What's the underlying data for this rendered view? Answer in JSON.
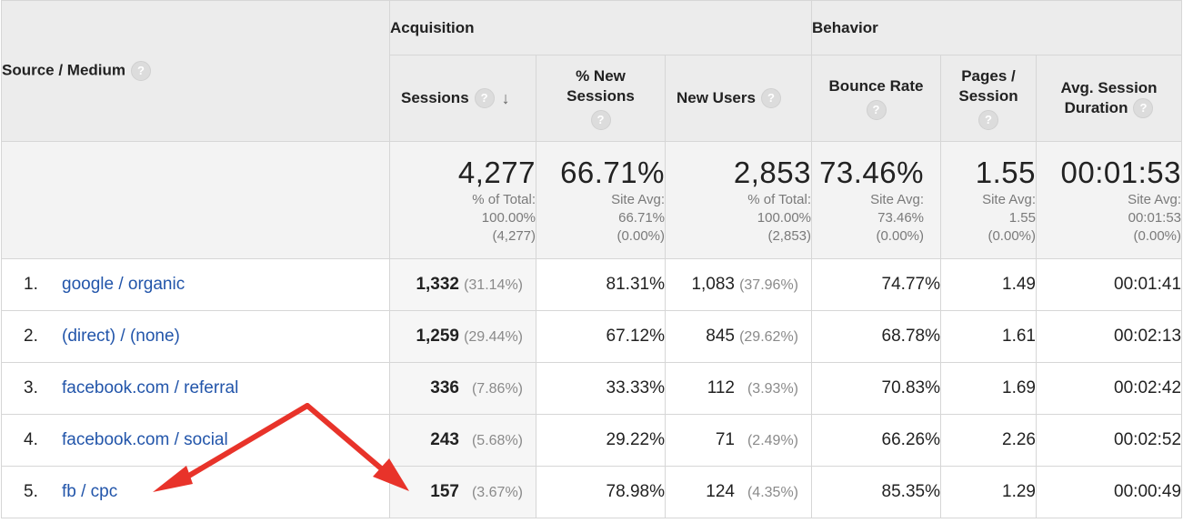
{
  "header": {
    "source_medium": "Source / Medium",
    "acquisition": "Acquisition",
    "behavior": "Behavior",
    "sessions": "Sessions",
    "pct_new_sessions_1": "% New",
    "pct_new_sessions_2": "Sessions",
    "new_users": "New Users",
    "bounce_rate": "Bounce Rate",
    "pages_session_1": "Pages /",
    "pages_session_2": "Session",
    "avg_session_1": "Avg. Session",
    "avg_session_2": "Duration",
    "help_glyph": "?",
    "sort_glyph": "↓"
  },
  "totals": {
    "sessions": {
      "big": "4,277",
      "l1": "% of Total:",
      "l2": "100.00%",
      "l3": "(4,277)"
    },
    "pct_new": {
      "big": "66.71%",
      "l1": "Site Avg:",
      "l2": "66.71%",
      "l3": "(0.00%)"
    },
    "new_users": {
      "big": "2,853",
      "l1": "% of Total:",
      "l2": "100.00%",
      "l3": "(2,853)"
    },
    "bounce": {
      "big": "73.46%",
      "l1": "Site Avg:",
      "l2": "73.46%",
      "l3": "(0.00%)"
    },
    "pages": {
      "big": "1.55",
      "l1": "Site Avg:",
      "l2": "1.55",
      "l3": "(0.00%)"
    },
    "duration": {
      "big": "00:01:53",
      "l1": "Site Avg:",
      "l2": "00:01:53",
      "l3": "(0.00%)"
    }
  },
  "rows": [
    {
      "idx": "1.",
      "source": "google / organic",
      "sessions": "1,332",
      "sessions_pct": "(31.14%)",
      "pct_new": "81.31%",
      "new_users": "1,083",
      "new_users_pct": "(37.96%)",
      "bounce": "74.77%",
      "pages": "1.49",
      "duration": "00:01:41"
    },
    {
      "idx": "2.",
      "source": "(direct) / (none)",
      "sessions": "1,259",
      "sessions_pct": "(29.44%)",
      "pct_new": "67.12%",
      "new_users": "845",
      "new_users_pct": "(29.62%)",
      "bounce": "68.78%",
      "pages": "1.61",
      "duration": "00:02:13"
    },
    {
      "idx": "3.",
      "source": "facebook.com / referral",
      "sessions": "336",
      "sessions_pct": "(7.86%)",
      "pct_new": "33.33%",
      "new_users": "112",
      "new_users_pct": "(3.93%)",
      "bounce": "70.83%",
      "pages": "1.69",
      "duration": "00:02:42"
    },
    {
      "idx": "4.",
      "source": "facebook.com / social",
      "sessions": "243",
      "sessions_pct": "(5.68%)",
      "pct_new": "29.22%",
      "new_users": "71",
      "new_users_pct": "(2.49%)",
      "bounce": "66.26%",
      "pages": "2.26",
      "duration": "00:02:52"
    },
    {
      "idx": "5.",
      "source": "fb / cpc",
      "sessions": "157",
      "sessions_pct": "(3.67%)",
      "pct_new": "78.98%",
      "new_users": "124",
      "new_users_pct": "(4.35%)",
      "bounce": "85.35%",
      "pages": "1.29",
      "duration": "00:00:49"
    }
  ],
  "annotation": {
    "arrow_color": "#e8332a"
  }
}
